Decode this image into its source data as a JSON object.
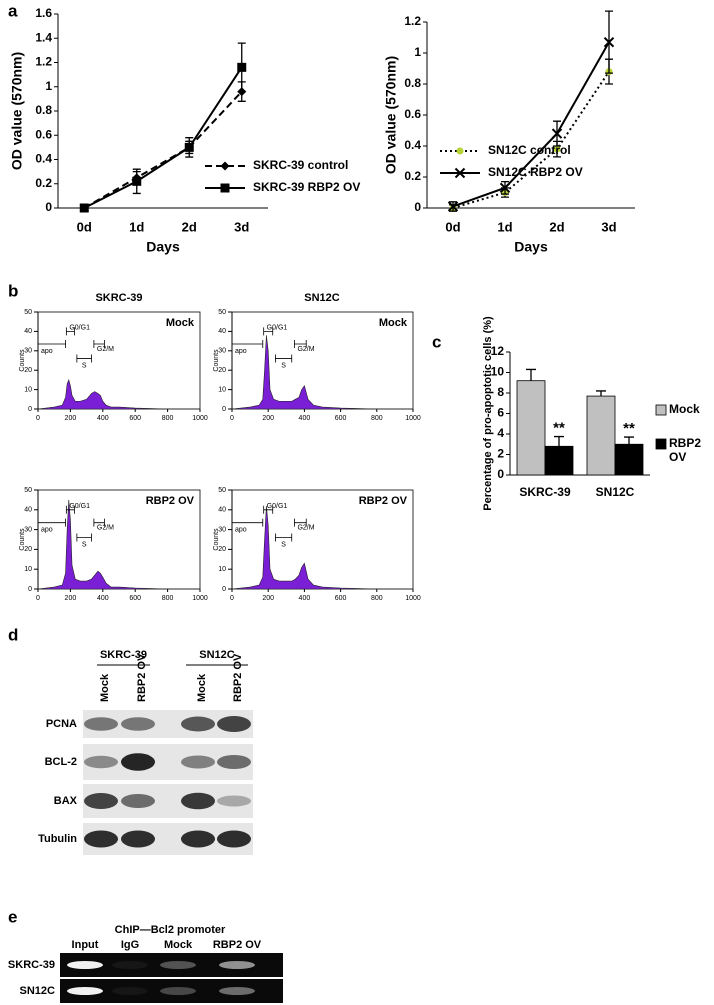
{
  "panel_labels": [
    "a",
    "b",
    "c",
    "d",
    "e"
  ],
  "chart_data": [
    {
      "type": "line",
      "ylabel": "OD value (570nm)",
      "xlabel": "Days",
      "categories": [
        "0d",
        "1d",
        "2d",
        "3d"
      ],
      "ylim": [
        0,
        1.6
      ],
      "yticks": [
        0,
        0.2,
        0.4,
        0.6,
        0.8,
        1,
        1.2,
        1.4,
        1.6
      ],
      "series": [
        {
          "name": "SKRC-39 control",
          "color": "#000000",
          "line_style": "dashed",
          "marker": "diamond",
          "values": [
            0,
            0.25,
            0.5,
            0.96
          ],
          "errors": [
            0.01,
            0.05,
            0.05,
            0.08
          ]
        },
        {
          "name": "SKRC-39 RBP2 OV",
          "color": "#000000",
          "line_style": "solid",
          "marker": "square",
          "values": [
            0,
            0.22,
            0.5,
            1.16
          ],
          "errors": [
            0.02,
            0.1,
            0.08,
            0.2
          ]
        }
      ]
    },
    {
      "type": "line",
      "ylabel": "OD value (570nm)",
      "xlabel": "Days",
      "categories": [
        "0d",
        "1d",
        "2d",
        "3d"
      ],
      "ylim": [
        0,
        1.2
      ],
      "yticks": [
        0,
        0.2,
        0.4,
        0.6,
        0.8,
        1,
        1.2
      ],
      "series": [
        {
          "name": "SN12C control",
          "color": "#000000",
          "marker_color": "#b5d334",
          "line_style": "dotted",
          "marker": "circle",
          "values": [
            0,
            0.1,
            0.38,
            0.88
          ],
          "errors": [
            0.02,
            0.03,
            0.05,
            0.08
          ]
        },
        {
          "name": "SN12C RBP2 OV",
          "color": "#000000",
          "line_style": "solid",
          "marker": "x",
          "values": [
            0.01,
            0.13,
            0.48,
            1.07
          ],
          "errors": [
            0.03,
            0.04,
            0.08,
            0.2
          ]
        }
      ]
    },
    {
      "type": "bar",
      "ylabel": "Percentage of pro-apoptotic cells (%)",
      "categories": [
        "SKRC-39",
        "SN12C"
      ],
      "ylim": [
        0,
        12
      ],
      "yticks": [
        0,
        2,
        4,
        6,
        8,
        10,
        12
      ],
      "series": [
        {
          "name": "Mock",
          "color": "#c0c0c0",
          "values": [
            9.2,
            7.7
          ],
          "errors": [
            1.1,
            0.5
          ]
        },
        {
          "name": "RBP2 OV",
          "color": "#000000",
          "values": [
            2.8,
            3
          ],
          "errors": [
            0.95,
            0.7
          ],
          "annotations": [
            "**",
            "**"
          ]
        }
      ]
    },
    {
      "type": "area",
      "title": "Mock",
      "ylabel": "Counts",
      "color": "#7b1fd6",
      "xlim": [
        0,
        1000
      ],
      "xticks": [
        0,
        200,
        400,
        600,
        800,
        1000
      ],
      "ylim": [
        0,
        50
      ],
      "yticks": [
        0,
        10,
        20,
        30,
        40,
        50
      ],
      "annotations": [
        "G0/G1",
        "apo",
        "S",
        "G2/M"
      ],
      "x": [
        0,
        100,
        150,
        170,
        180,
        190,
        200,
        210,
        230,
        260,
        300,
        330,
        350,
        370,
        385,
        400,
        420,
        450,
        500,
        600,
        800,
        1000
      ],
      "values": [
        0,
        1,
        2,
        6,
        13,
        15,
        12,
        7,
        4,
        4,
        5,
        8,
        9,
        8,
        7,
        4,
        2,
        1,
        1,
        0.5,
        0,
        0
      ]
    },
    {
      "type": "area",
      "title": "Mock",
      "ylabel": "Counts",
      "color": "#7b1fd6",
      "xlim": [
        0,
        1000
      ],
      "xticks": [
        0,
        200,
        400,
        600,
        800,
        1000
      ],
      "ylim": [
        0,
        50
      ],
      "yticks": [
        0,
        10,
        20,
        30,
        40,
        50
      ],
      "annotations": [
        "G0/G1",
        "apo",
        "S",
        "G2/M"
      ],
      "x": [
        0,
        100,
        150,
        170,
        180,
        190,
        200,
        210,
        230,
        260,
        300,
        330,
        350,
        370,
        385,
        400,
        420,
        450,
        500,
        600,
        800,
        1000
      ],
      "values": [
        0,
        1,
        2,
        5,
        20,
        38,
        30,
        10,
        5,
        4,
        4,
        4,
        5,
        6,
        10,
        12,
        5,
        2,
        1,
        0.5,
        0,
        0
      ]
    },
    {
      "type": "area",
      "title": "RBP2 OV",
      "ylabel": "Counts",
      "color": "#7b1fd6",
      "xlim": [
        0,
        1000
      ],
      "xticks": [
        0,
        200,
        400,
        600,
        800,
        1000
      ],
      "ylim": [
        0,
        50
      ],
      "yticks": [
        0,
        10,
        20,
        30,
        40,
        50
      ],
      "annotations": [
        "G0/G1",
        "apo",
        "S",
        "G2/M"
      ],
      "x": [
        0,
        100,
        150,
        170,
        180,
        190,
        200,
        210,
        230,
        260,
        300,
        330,
        350,
        370,
        385,
        400,
        420,
        450,
        500,
        600,
        800,
        1000
      ],
      "values": [
        0,
        1,
        2,
        8,
        30,
        45,
        35,
        12,
        5,
        4,
        4,
        5,
        7,
        9,
        8,
        6,
        3,
        1,
        1,
        0.5,
        0,
        0
      ]
    },
    {
      "type": "area",
      "title": "RBP2 OV",
      "ylabel": "Counts",
      "color": "#7b1fd6",
      "xlim": [
        0,
        1000
      ],
      "xticks": [
        0,
        200,
        400,
        600,
        800,
        1000
      ],
      "ylim": [
        0,
        50
      ],
      "yticks": [
        0,
        10,
        20,
        30,
        40,
        50
      ],
      "annotations": [
        "G0/G1",
        "apo",
        "S",
        "G2/M"
      ],
      "x": [
        0,
        100,
        150,
        170,
        180,
        190,
        200,
        210,
        230,
        260,
        300,
        330,
        350,
        370,
        385,
        400,
        420,
        450,
        500,
        600,
        800,
        1000
      ],
      "values": [
        0,
        1,
        2,
        6,
        25,
        42,
        32,
        10,
        5,
        4,
        4,
        4,
        5,
        7,
        11,
        13,
        5,
        2,
        1,
        0.5,
        0,
        0
      ]
    }
  ],
  "flow_column_titles": [
    "SKRC-39",
    "SN12C"
  ],
  "western_blot": {
    "groups": [
      "SKRC-39",
      "SN12C"
    ],
    "lanes": [
      "Mock",
      "RBP2 OV",
      "Mock",
      "RBP2 OV"
    ],
    "rows": [
      "PCNA",
      "BCL-2",
      "BAX",
      "Tubulin"
    ]
  },
  "chip": {
    "title": "ChIP—Bcl2 promoter",
    "lanes": [
      "Input",
      "IgG",
      "Mock",
      "RBP2 OV"
    ],
    "rows": [
      "SKRC-39",
      "SN12C"
    ]
  }
}
